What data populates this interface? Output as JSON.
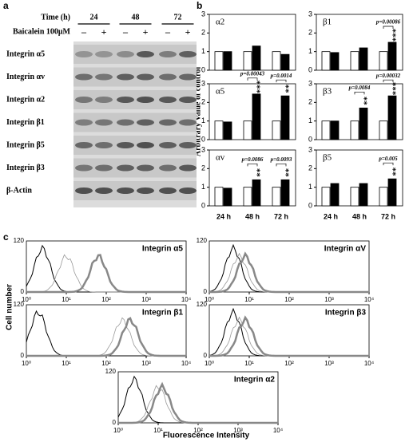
{
  "panel_a": {
    "label": "a",
    "time_label": "Time (h)",
    "times": [
      "24",
      "48",
      "72"
    ],
    "treatment_label": "Baicalein 100μM",
    "signs": [
      "–",
      "+",
      "–",
      "+",
      "–",
      "+"
    ],
    "rows": [
      "Integrin α5",
      "Integrin αv",
      "Integrin α2",
      "Integrin β1",
      "Integrin β5",
      "Integrin β3",
      "β-Actin"
    ]
  },
  "panel_b": {
    "label": "b",
    "ylabel": "Arbitrary Value of control"
  },
  "chart_data": [
    {
      "type": "bar",
      "title": "α2",
      "categories": [
        null,
        null,
        null
      ],
      "ylim": [
        0,
        3
      ],
      "yticks": [
        0,
        1,
        2,
        3
      ],
      "series": [
        {
          "color": "#ffffff",
          "values": [
            1,
            1,
            1
          ]
        },
        {
          "color": "#000000",
          "values": [
            1,
            1.3,
            0.85
          ]
        }
      ],
      "pvalues": [
        null,
        null,
        null
      ],
      "stars": [
        null,
        null,
        null
      ]
    },
    {
      "type": "bar",
      "title": "β1",
      "categories": [
        null,
        null,
        null
      ],
      "ylim": [
        0,
        3
      ],
      "yticks": [
        0,
        1,
        2,
        3
      ],
      "series": [
        {
          "color": "#ffffff",
          "values": [
            1,
            1,
            1
          ]
        },
        {
          "color": "#000000",
          "values": [
            0.95,
            1.2,
            1.5
          ]
        }
      ],
      "pvalues": [
        null,
        null,
        "p=0.00086"
      ],
      "stars": [
        null,
        null,
        "***"
      ]
    },
    {
      "type": "bar",
      "title": "α5",
      "categories": [
        null,
        null,
        null
      ],
      "ylim": [
        0,
        3
      ],
      "yticks": [
        0,
        1,
        2,
        3
      ],
      "series": [
        {
          "color": "#ffffff",
          "values": [
            1,
            1,
            1
          ]
        },
        {
          "color": "#000000",
          "values": [
            0.95,
            2.45,
            2.35
          ]
        }
      ],
      "pvalues": [
        null,
        "p=0.00043",
        "p=0.0014"
      ],
      "stars": [
        null,
        "***",
        "**"
      ]
    },
    {
      "type": "bar",
      "title": "β3",
      "categories": [
        null,
        null,
        null
      ],
      "ylim": [
        0,
        3
      ],
      "yticks": [
        0,
        1,
        2,
        3
      ],
      "series": [
        {
          "color": "#ffffff",
          "values": [
            1,
            1,
            1
          ]
        },
        {
          "color": "#000000",
          "values": [
            1,
            1.7,
            2.35
          ]
        }
      ],
      "pvalues": [
        null,
        "p=0.0084",
        "p=0.00032"
      ],
      "stars": [
        null,
        "**",
        "***"
      ]
    },
    {
      "type": "bar",
      "title": "αv",
      "categories": [
        "24 h",
        "48 h",
        "72 h"
      ],
      "ylim": [
        0,
        3
      ],
      "yticks": [
        0,
        1,
        2,
        3
      ],
      "series": [
        {
          "color": "#ffffff",
          "values": [
            1,
            1,
            1
          ]
        },
        {
          "color": "#000000",
          "values": [
            0.95,
            1.4,
            1.4
          ]
        }
      ],
      "pvalues": [
        null,
        "p=0.0086",
        "p=0.0093"
      ],
      "stars": [
        null,
        "**",
        "**"
      ]
    },
    {
      "type": "bar",
      "title": "β5",
      "categories": [
        "24 h",
        "48 h",
        "72 h"
      ],
      "ylim": [
        0,
        3
      ],
      "yticks": [
        0,
        1,
        2,
        3
      ],
      "series": [
        {
          "color": "#ffffff",
          "values": [
            1,
            1,
            1
          ]
        },
        {
          "color": "#000000",
          "values": [
            1.2,
            1.2,
            1.45
          ]
        }
      ],
      "pvalues": [
        null,
        null,
        "p=0.005"
      ],
      "stars": [
        null,
        null,
        "**"
      ]
    }
  ],
  "panel_c": {
    "label": "c",
    "ylabel": "Cell number",
    "xlabel": "Fluorescence Intensity",
    "xticks": [
      {
        "value": 1,
        "label": "10⁰"
      },
      {
        "value": 10,
        "label": "10¹"
      },
      {
        "value": 100,
        "label": "10²"
      },
      {
        "value": 1000,
        "label": "10³"
      },
      {
        "value": 10000,
        "label": "10⁴"
      }
    ],
    "yticks": [
      0,
      120
    ],
    "histograms": [
      "Integrin α5",
      "Integrin αV",
      "Integrin β1",
      "Integrin β3",
      "Integrin α2"
    ]
  }
}
